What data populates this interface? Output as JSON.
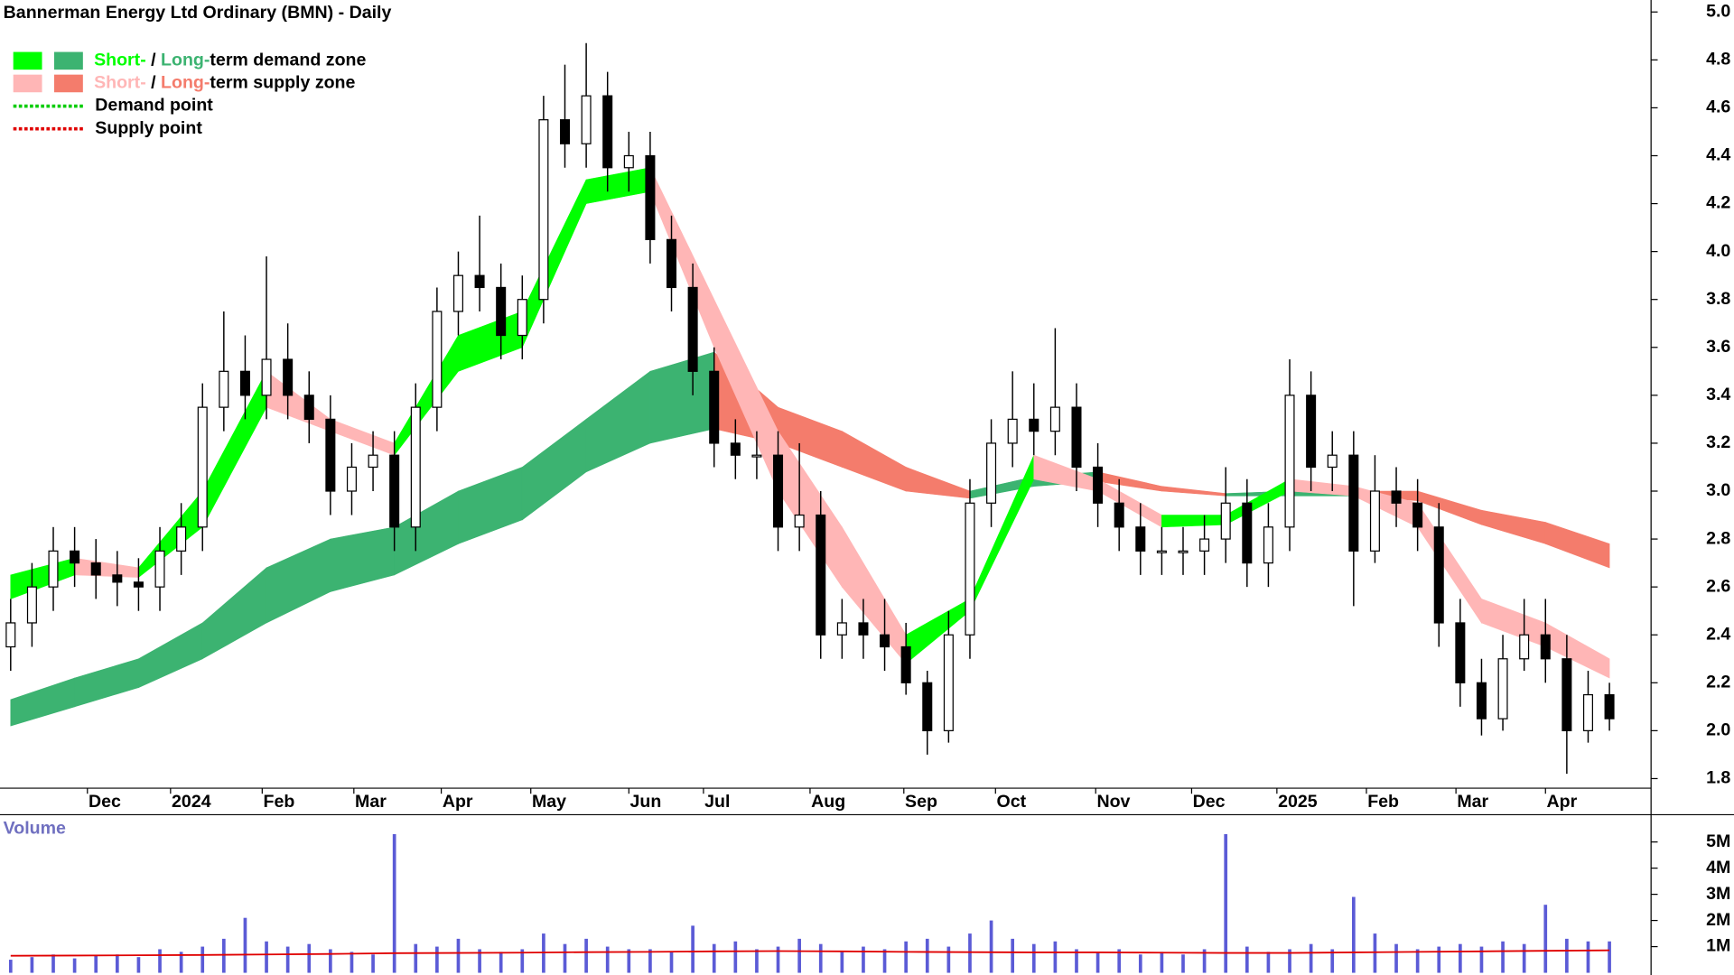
{
  "chart_data": {
    "type": "candlestick",
    "title": "Bannerman Energy Ltd Ordinary (BMN) - Daily",
    "legend": [
      {
        "short": "Short-",
        "sep": " / ",
        "long": "Long-",
        "rest": "term demand zone"
      },
      {
        "short": "Short-",
        "sep": " / ",
        "long": "Long-",
        "rest": "term supply zone"
      },
      {
        "label": "Demand point"
      },
      {
        "label": "Supply point"
      }
    ],
    "colors": {
      "demand_short": "#00ff00",
      "demand_long": "#3cb371",
      "supply_short": "#ffb6b6",
      "supply_long": "#f47c6c",
      "demand_point": "#00cc00",
      "supply_point": "#e00000",
      "volume": "#5b5bd6",
      "volume_avg": "#e00000"
    },
    "xlim": [
      -0.5,
      75.5
    ],
    "xticks": [
      {
        "value": 3.6,
        "label": "Dec"
      },
      {
        "value": 7.5,
        "label": "2024"
      },
      {
        "value": 11.8,
        "label": "Feb"
      },
      {
        "value": 16.1,
        "label": "Mar"
      },
      {
        "value": 20.2,
        "label": "Apr"
      },
      {
        "value": 24.4,
        "label": "May"
      },
      {
        "value": 29.0,
        "label": "Jun"
      },
      {
        "value": 32.5,
        "label": "Jul"
      },
      {
        "value": 37.5,
        "label": "Aug"
      },
      {
        "value": 41.9,
        "label": "Sep"
      },
      {
        "value": 46.2,
        "label": "Oct"
      },
      {
        "value": 50.9,
        "label": "Nov"
      },
      {
        "value": 55.4,
        "label": "Dec"
      },
      {
        "value": 59.4,
        "label": "2025"
      },
      {
        "value": 63.6,
        "label": "Feb"
      },
      {
        "value": 67.8,
        "label": "Mar"
      },
      {
        "value": 72.0,
        "label": "Apr"
      }
    ],
    "ylim": [
      1.76,
      5.05
    ],
    "yticks": [
      {
        "value": 5,
        "label": "5.0"
      },
      4.8,
      4.6,
      4.4,
      4.2,
      {
        "value": 4,
        "label": "4.0"
      },
      3.8,
      3.6,
      3.4,
      3.2,
      {
        "value": 3,
        "label": "3.0"
      },
      2.8,
      2.6,
      2.4,
      2.2,
      {
        "value": 2,
        "label": "2.0"
      },
      1.8
    ],
    "candles": {
      "open": [
        2.35,
        2.45,
        2.6,
        2.75,
        2.7,
        2.65,
        2.62,
        2.6,
        2.75,
        2.85,
        3.35,
        3.5,
        3.4,
        3.55,
        3.4,
        3.3,
        3.0,
        3.1,
        3.15,
        2.85,
        3.35,
        3.75,
        3.9,
        3.85,
        3.65,
        3.8,
        4.55,
        4.45,
        4.65,
        4.35,
        4.4,
        4.05,
        3.85,
        3.5,
        3.2,
        3.15,
        3.15,
        2.85,
        2.9,
        2.4,
        2.45,
        2.4,
        2.35,
        2.2,
        2.0,
        2.4,
        2.95,
        3.2,
        3.3,
        3.25,
        3.35,
        3.1,
        2.95,
        2.85,
        2.75,
        2.75,
        2.75,
        2.8,
        2.95,
        2.7,
        2.85,
        3.4,
        3.1,
        3.15,
        2.75,
        3.0,
        2.95,
        2.85,
        2.45,
        2.2,
        2.05,
        2.3,
        2.4,
        2.3,
        2.0,
        2.15
      ],
      "high": [
        2.55,
        2.7,
        2.85,
        2.85,
        2.8,
        2.75,
        2.72,
        2.85,
        2.95,
        3.45,
        3.75,
        3.65,
        3.98,
        3.7,
        3.5,
        3.4,
        3.2,
        3.25,
        3.25,
        3.45,
        3.85,
        4.0,
        4.15,
        3.95,
        3.9,
        4.65,
        4.78,
        4.87,
        4.75,
        4.5,
        4.5,
        4.15,
        3.95,
        3.6,
        3.3,
        3.25,
        3.25,
        3.2,
        3.0,
        2.55,
        2.55,
        2.55,
        2.45,
        2.25,
        2.5,
        3.05,
        3.3,
        3.5,
        3.45,
        3.68,
        3.45,
        3.2,
        3.05,
        2.95,
        2.85,
        2.85,
        2.9,
        3.1,
        3.05,
        2.95,
        3.55,
        3.5,
        3.25,
        3.25,
        3.15,
        3.1,
        3.05,
        2.95,
        2.55,
        2.3,
        2.4,
        2.55,
        2.55,
        2.4,
        2.25,
        2.2
      ],
      "low": [
        2.25,
        2.35,
        2.5,
        2.6,
        2.55,
        2.52,
        2.5,
        2.5,
        2.65,
        2.75,
        3.25,
        3.3,
        3.3,
        3.3,
        3.2,
        2.9,
        2.9,
        3.0,
        2.75,
        2.75,
        3.25,
        3.65,
        3.75,
        3.55,
        3.55,
        3.7,
        4.35,
        4.35,
        4.25,
        4.25,
        3.95,
        3.75,
        3.4,
        3.1,
        3.05,
        3.05,
        2.75,
        2.75,
        2.3,
        2.3,
        2.3,
        2.25,
        2.15,
        1.9,
        1.95,
        2.3,
        2.85,
        3.1,
        3.15,
        3.15,
        3.0,
        2.85,
        2.75,
        2.65,
        2.65,
        2.65,
        2.65,
        2.7,
        2.6,
        2.6,
        2.75,
        3.0,
        3.0,
        2.52,
        2.7,
        2.85,
        2.75,
        2.35,
        2.1,
        1.98,
        2.0,
        2.25,
        2.2,
        1.82,
        1.95,
        2.0
      ],
      "close": [
        2.45,
        2.6,
        2.75,
        2.7,
        2.65,
        2.62,
        2.6,
        2.75,
        2.85,
        3.35,
        3.5,
        3.4,
        3.55,
        3.4,
        3.3,
        3.0,
        3.1,
        3.15,
        2.85,
        3.35,
        3.75,
        3.9,
        3.85,
        3.65,
        3.8,
        4.55,
        4.45,
        4.65,
        4.35,
        4.4,
        4.05,
        3.85,
        3.5,
        3.2,
        3.15,
        3.15,
        2.85,
        2.9,
        2.4,
        2.45,
        2.4,
        2.35,
        2.2,
        2.0,
        2.4,
        2.95,
        3.2,
        3.3,
        3.25,
        3.35,
        3.1,
        2.95,
        2.85,
        2.75,
        2.75,
        2.75,
        2.8,
        2.95,
        2.7,
        2.85,
        3.4,
        3.1,
        3.15,
        2.75,
        3.0,
        2.95,
        2.85,
        2.45,
        2.2,
        2.05,
        2.3,
        2.4,
        2.3,
        2.0,
        2.15,
        2.05
      ]
    },
    "zones": {
      "x": [
        0,
        3,
        6,
        9,
        12,
        15,
        18,
        21,
        24,
        27,
        30,
        33,
        36,
        39,
        42,
        45,
        48,
        51,
        54,
        57,
        60,
        63,
        66,
        69,
        72,
        75
      ],
      "long_lower": [
        2.02,
        2.1,
        2.18,
        2.3,
        2.45,
        2.58,
        2.65,
        2.78,
        2.88,
        3.08,
        3.2,
        3.26,
        3.2,
        3.1,
        3.0,
        2.97,
        3.02,
        3.04,
        3.0,
        2.98,
        2.98,
        2.98,
        2.96,
        2.86,
        2.78,
        2.68
      ],
      "long_upper": [
        2.13,
        2.22,
        2.3,
        2.45,
        2.68,
        2.8,
        2.85,
        3.0,
        3.1,
        3.3,
        3.5,
        3.58,
        3.35,
        3.25,
        3.1,
        3.0,
        3.06,
        3.08,
        3.02,
        2.99,
        3.0,
        3.0,
        3.0,
        2.92,
        2.87,
        2.78
      ],
      "short_lower": [
        2.55,
        2.65,
        2.64,
        2.85,
        3.35,
        3.25,
        3.15,
        3.5,
        3.6,
        4.2,
        4.25,
        3.6,
        3.0,
        2.6,
        2.28,
        2.5,
        3.05,
        3.0,
        2.85,
        2.86,
        3.0,
        2.98,
        2.85,
        2.45,
        2.35,
        2.22
      ],
      "short_upper": [
        2.65,
        2.72,
        2.68,
        3.0,
        3.5,
        3.3,
        3.2,
        3.65,
        3.75,
        4.3,
        4.35,
        3.8,
        3.25,
        2.85,
        2.4,
        2.55,
        3.15,
        3.05,
        2.9,
        2.9,
        3.05,
        3.02,
        2.95,
        2.55,
        2.45,
        2.3
      ]
    },
    "volume_title": "Volume",
    "vylim": [
      0,
      6000000
    ],
    "vyticks": [
      {
        "value": 1000000,
        "label": "1M"
      },
      {
        "value": 2000000,
        "label": "2M"
      },
      {
        "value": 3000000,
        "label": "3M"
      },
      {
        "value": 4000000,
        "label": "4M"
      },
      {
        "value": 5000000,
        "label": "5M"
      }
    ],
    "volume": [
      500000,
      600000,
      700000,
      550000,
      650000,
      700000,
      600000,
      900000,
      800000,
      1000000,
      1300000,
      2100000,
      1200000,
      1000000,
      1100000,
      900000,
      800000,
      700000,
      5300000,
      1100000,
      1000000,
      1300000,
      900000,
      800000,
      900000,
      1500000,
      1100000,
      1300000,
      1000000,
      900000,
      900000,
      800000,
      1800000,
      1100000,
      1200000,
      900000,
      1000000,
      1300000,
      1100000,
      800000,
      1000000,
      900000,
      1200000,
      1300000,
      1000000,
      1500000,
      2000000,
      1300000,
      1100000,
      1200000,
      900000,
      800000,
      900000,
      700000,
      800000,
      700000,
      900000,
      5300000,
      1000000,
      800000,
      900000,
      1100000,
      900000,
      2900000,
      1500000,
      1100000,
      900000,
      1000000,
      1100000,
      1000000,
      1200000,
      1100000,
      2600000,
      1300000,
      1200000,
      1200000
    ],
    "volume_avg": [
      650000,
      660000,
      670000,
      680000,
      700000,
      720000,
      750000,
      760000,
      770000,
      790000,
      800000,
      820000,
      830000,
      820000,
      800000,
      790000,
      780000,
      780000,
      770000,
      760000,
      760000,
      780000,
      800000,
      820000,
      840000,
      860000
    ]
  }
}
